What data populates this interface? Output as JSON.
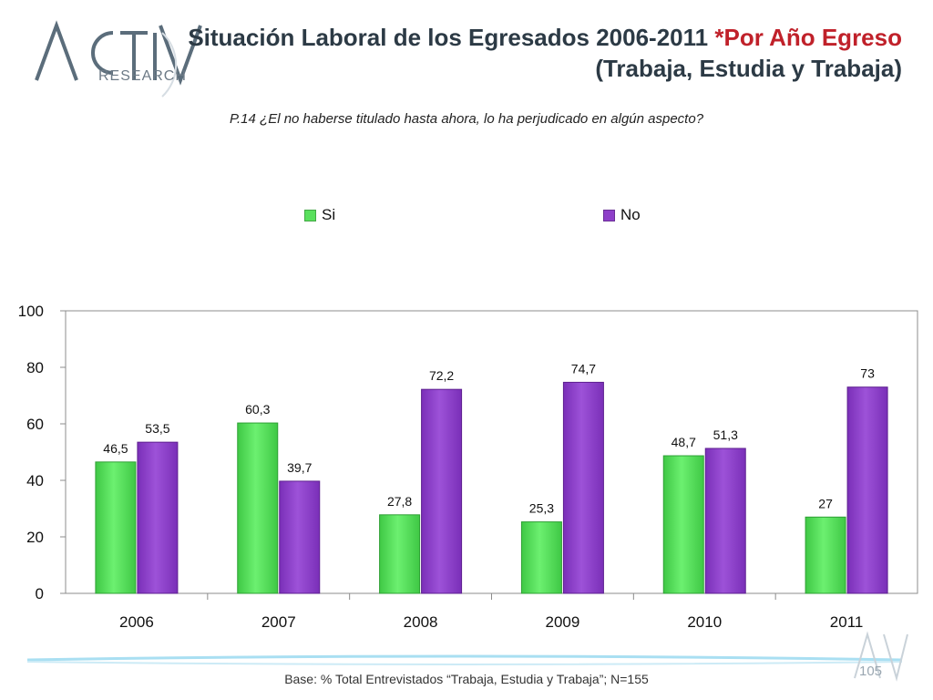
{
  "logo": {
    "name": "ACTIVA",
    "sub": "RESEARCH"
  },
  "header": {
    "title_main": "Situación Laboral de los Egresados 2006-2011 ",
    "title_accent": "*Por Año Egreso",
    "title_line2": "(Trabaja, Estudia y Trabaja)"
  },
  "question": "P.14 ¿El no haberse titulado hasta ahora, lo ha perjudicado en algún aspecto?",
  "footer": {
    "base": "Base: % Total Entrevistados “Trabaja, Estudia y Trabaja”; N=155",
    "page": "105"
  },
  "colors": {
    "si": "#59e05d",
    "no": "#8e3fc9",
    "title": "#2c3a45",
    "accent": "#c0212a"
  },
  "chart_data": {
    "type": "bar",
    "categories": [
      "2006",
      "2007",
      "2008",
      "2009",
      "2010",
      "2011"
    ],
    "series": [
      {
        "name": "Si",
        "values": [
          46.5,
          60.3,
          27.8,
          25.3,
          48.7,
          27
        ],
        "labels": [
          "46,5",
          "60,3",
          "27,8",
          "25,3",
          "48,7",
          "27"
        ]
      },
      {
        "name": "No",
        "values": [
          53.5,
          39.7,
          72.2,
          74.7,
          51.3,
          73
        ],
        "labels": [
          "53,5",
          "39,7",
          "72,2",
          "74,7",
          "51,3",
          "73"
        ]
      }
    ],
    "yticks": [
      0,
      20,
      40,
      60,
      80,
      100
    ],
    "ylim": [
      0,
      100
    ],
    "title": "",
    "xlabel": "",
    "ylabel": "",
    "legend": "top-center",
    "grid": false
  }
}
